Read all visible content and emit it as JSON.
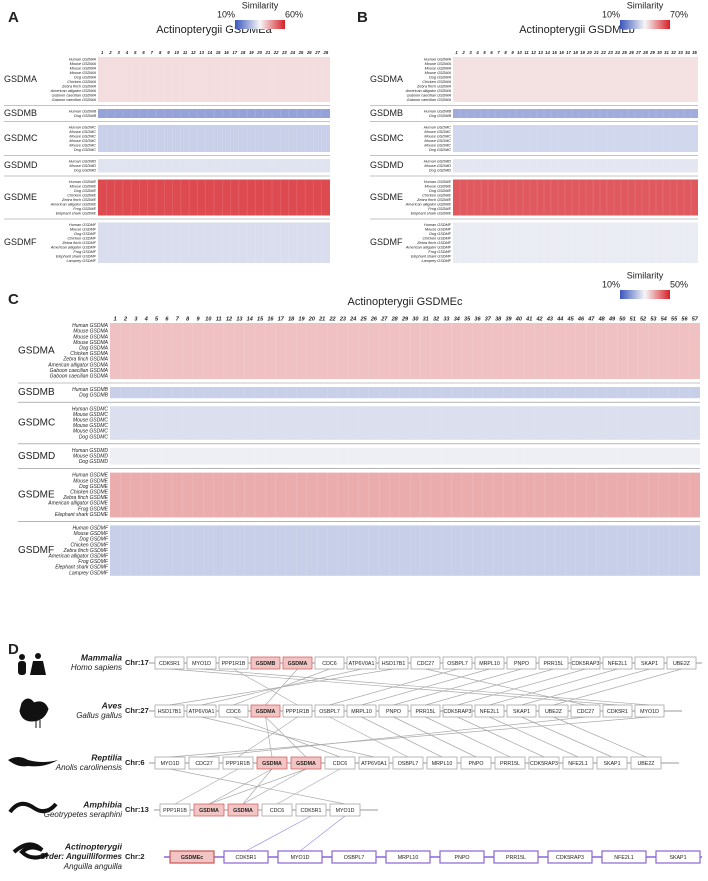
{
  "groups": [
    {
      "name": "GSDMA",
      "rows": [
        "Human GSDMA",
        "Mouse GSDMA",
        "Mouse GSDMA",
        "Mouse GSDMA",
        "Dog GSDMA",
        "Chicken GSDMA",
        "Zebra finch GSDMA",
        "American alligator GSDMA",
        "Gaboon caecilian GSDMA",
        "Gaboon caecilian GSDMA"
      ]
    },
    {
      "name": "GSDMB",
      "rows": [
        "Human GSDMB",
        "Dog GSDMB"
      ]
    },
    {
      "name": "GSDMC",
      "rows": [
        "Human GSDMC",
        "Mouse GSDMC",
        "Mouse GSDMC",
        "Mouse GSDMC",
        "Mouse GSDMC",
        "Dog GSDMC"
      ]
    },
    {
      "name": "GSDMD",
      "rows": [
        "Human GSDMD",
        "Mouse GSDMD",
        "Dog GSDMD"
      ]
    },
    {
      "name": "GSDME",
      "rows": [
        "Human GSDME",
        "Mouse GSDME",
        "Dog GSDME",
        "Chicken GSDME",
        "Zebra finch GSDME",
        "American alligator GSDME",
        "Frog GSDME",
        "Elephant shark GSDME"
      ]
    },
    {
      "name": "GSDMF",
      "rows": [
        "Human GSDMF",
        "Mouse GSDMF",
        "Dog GSDMF",
        "Chicken GSDMF",
        "Zebra finch GSDMF",
        "American alligator GSDMF",
        "Frog GSDMF",
        "Elephant shark GSDMF",
        "Lamprey GSDMF"
      ]
    }
  ],
  "panels": [
    {
      "letter": "A",
      "title": "Actinopterygii GSDMEa",
      "colorbar": {
        "label": "Similarity",
        "lim": [
          10,
          60
        ],
        "ticks": [
          {
            "value": 10,
            "label": "10%"
          },
          {
            "value": 60,
            "label": "60%"
          }
        ]
      },
      "columns": [
        1,
        2,
        3,
        4,
        5,
        6,
        7,
        8,
        9,
        10,
        11,
        12,
        13,
        14,
        15,
        16,
        17,
        18,
        19,
        20,
        21,
        22,
        23,
        24,
        25,
        26,
        27,
        28
      ],
      "group_values": [
        38,
        22,
        29,
        32,
        55,
        31
      ]
    },
    {
      "letter": "B",
      "title": "Actinopterygii GSDMEb",
      "colorbar": {
        "label": "Similarity",
        "lim": [
          10,
          70
        ],
        "ticks": [
          {
            "value": 10,
            "label": "10%"
          },
          {
            "value": 70,
            "label": "70%"
          }
        ]
      },
      "columns": [
        1,
        2,
        3,
        4,
        5,
        6,
        7,
        8,
        9,
        10,
        11,
        12,
        13,
        14,
        15,
        16,
        17,
        18,
        19,
        20,
        21,
        22,
        23,
        24,
        25,
        26,
        27,
        28,
        29,
        30,
        31,
        32,
        33,
        34,
        35
      ],
      "group_values": [
        43,
        26,
        34,
        37,
        62,
        38
      ]
    },
    {
      "letter": "C",
      "title": "Actinopterygii GSDMEc",
      "colorbar": {
        "label": "Similarity",
        "lim": [
          10,
          50
        ],
        "ticks": [
          {
            "value": 10,
            "label": "10%"
          },
          {
            "value": 50,
            "label": "50%"
          }
        ]
      },
      "columns": [
        1,
        2,
        3,
        4,
        5,
        6,
        7,
        8,
        9,
        10,
        11,
        12,
        13,
        14,
        15,
        16,
        17,
        18,
        19,
        20,
        21,
        22,
        23,
        24,
        25,
        26,
        27,
        28,
        29,
        30,
        31,
        32,
        33,
        34,
        35,
        36,
        37,
        38,
        39,
        40,
        41,
        42,
        43,
        44,
        45,
        46,
        47,
        48,
        49,
        50,
        51,
        52,
        53,
        54,
        55,
        56,
        57
      ],
      "group_values": [
        35,
        25,
        27,
        29,
        37,
        25
      ]
    }
  ],
  "synteny": {
    "letter": "D",
    "species": [
      {
        "class": "Mammalia",
        "species": "Homo sapiens",
        "chromosome": "Chr:17",
        "genes": [
          "CDK5R1",
          "MYO1D",
          "PPP1R1B",
          "GSDMB",
          "GSDMA",
          "CDC6",
          "ATP6V0A1",
          "HSD17B1",
          "CDC27",
          "OSBPL7",
          "MRPL10",
          "PNPO",
          "PRR15L",
          "CDK5RAP3",
          "NFE2L1",
          "SKAP1",
          "UBE2Z"
        ]
      },
      {
        "class": "Aves",
        "species": "Gallus gallus",
        "chromosome": "Chr:27",
        "genes": [
          "HSD17B1",
          "ATP6V0A1",
          "CDC6",
          "GSDMA",
          "PPP1R1B",
          "OSBPL7",
          "MRPL10",
          "PNPO",
          "PRR15L",
          "CDK5RAP3",
          "NFE2L1",
          "SKAP1",
          "UBE2Z",
          "CDC27",
          "CDK5R1",
          "MYO1D"
        ]
      },
      {
        "class": "Reptilia",
        "species": "Anolis carolinensis",
        "chromosome": "Chr:6",
        "genes": [
          "MYO1D",
          "CDC27",
          "PPP1R1B",
          "GSDMA",
          "GSDMA",
          "CDC6",
          "ATP6V0A1",
          "OSBPL7",
          "MRPL10",
          "PNPO",
          "PRR15L",
          "CDK5RAP3",
          "NFE2L1",
          "SKAP1",
          "UBE2Z"
        ]
      },
      {
        "class": "Amphibia",
        "species": "Geotrypetes seraphini",
        "chromosome": "Chr:13",
        "genes": [
          "PPP1R1B",
          "GSDMA",
          "GSDMA",
          "CDC6",
          "CDK5R1",
          "MYO1D"
        ]
      },
      {
        "class": "Actinopterygii",
        "order": "Order: Anguilliformes",
        "species": "Anguilla anguilla",
        "chromosome": "Chr:2",
        "genes": [
          "GSDMEc",
          "CDK5R1",
          "MYO1D",
          "OSBPL7",
          "MRPL10",
          "PNPO",
          "PRR15L",
          "CDK5RAP3",
          "NFE2L1",
          "SKAP1"
        ]
      }
    ]
  }
}
